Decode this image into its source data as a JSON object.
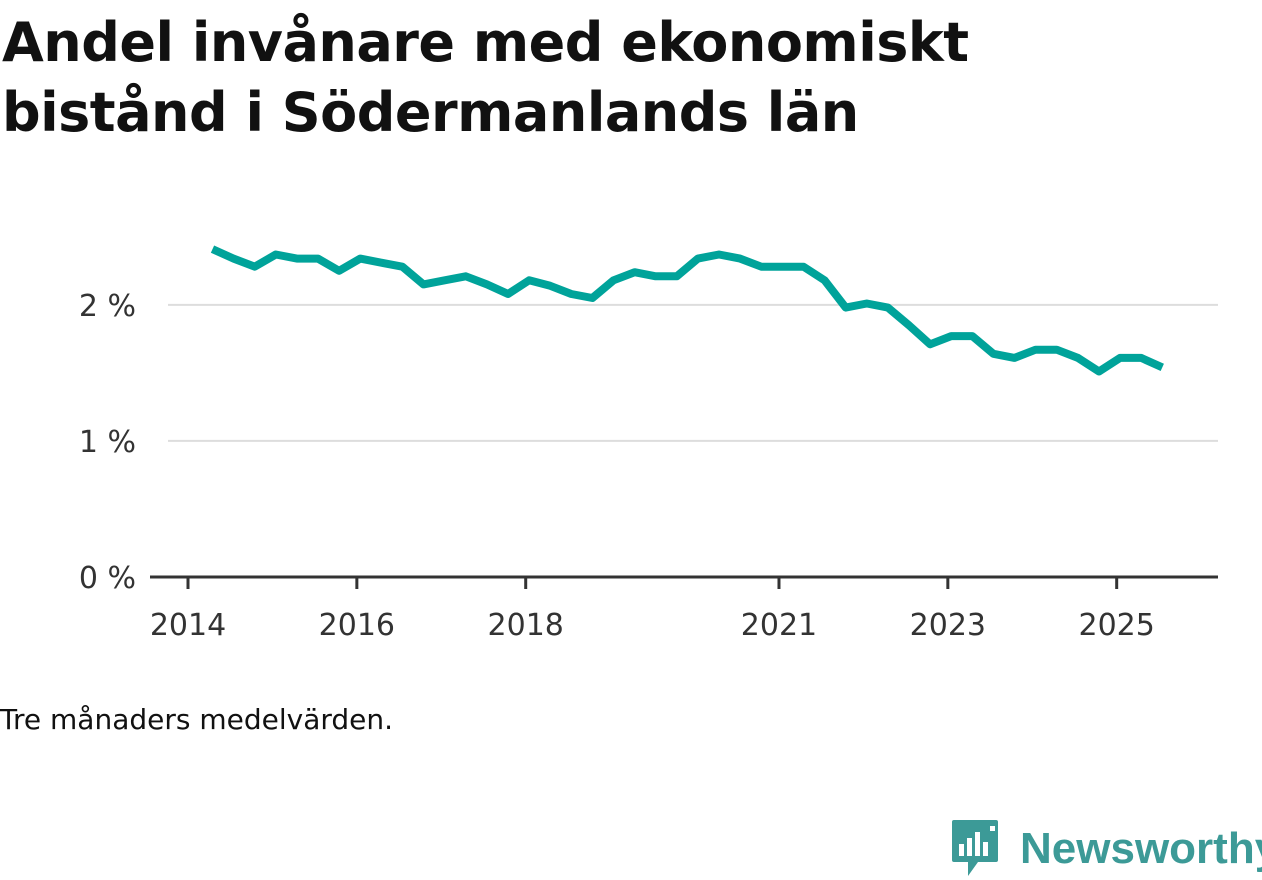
{
  "title": "Andel invånare med ekonomiskt bistånd i Södermanlands län",
  "caption": "Tre månaders medelvärden.",
  "logo": {
    "text": "Newsworthy",
    "color": "#3c9a97"
  },
  "colors": {
    "line": "#00a39a",
    "grid": "#dddddd",
    "axis": "#333333"
  },
  "chart_data": {
    "type": "line",
    "title": "Andel invånare med ekonomiskt bistånd i Södermanlands län",
    "xlabel": "",
    "ylabel": "",
    "ylim": [
      0,
      2.55
    ],
    "xlim": [
      2014.0,
      2026.2
    ],
    "y_ticks": [
      {
        "value": 0,
        "label": "0 %"
      },
      {
        "value": 1,
        "label": "1 %"
      },
      {
        "value": 2,
        "label": "2 %"
      }
    ],
    "x_ticks": [
      {
        "value": 2014,
        "label": "2014"
      },
      {
        "value": 2016,
        "label": "2016"
      },
      {
        "value": 2018,
        "label": "2018"
      },
      {
        "value": 2021,
        "label": "2021"
      },
      {
        "value": 2023,
        "label": "2023"
      },
      {
        "value": 2025,
        "label": "2025"
      }
    ],
    "series": [
      {
        "name": "Andel invånare med ekonomiskt bistånd",
        "x": [
          2014.29,
          2014.54,
          2014.79,
          2015.04,
          2015.29,
          2015.54,
          2015.79,
          2016.04,
          2016.29,
          2016.54,
          2016.79,
          2017.04,
          2017.29,
          2017.54,
          2017.79,
          2018.04,
          2018.29,
          2018.54,
          2018.79,
          2019.04,
          2019.29,
          2019.54,
          2019.79,
          2020.04,
          2020.29,
          2020.54,
          2020.79,
          2021.04,
          2021.29,
          2021.54,
          2021.79,
          2022.04,
          2022.29,
          2022.54,
          2022.79,
          2023.04,
          2023.29,
          2023.54,
          2023.79,
          2024.04,
          2024.29,
          2024.54,
          2024.79,
          2025.04,
          2025.29,
          2025.54
        ],
        "values": [
          2.41,
          2.34,
          2.28,
          2.37,
          2.34,
          2.34,
          2.25,
          2.34,
          2.31,
          2.28,
          2.15,
          2.18,
          2.21,
          2.15,
          2.08,
          2.18,
          2.14,
          2.08,
          2.05,
          2.18,
          2.24,
          2.21,
          2.21,
          2.34,
          2.37,
          2.34,
          2.28,
          2.28,
          2.28,
          2.18,
          1.98,
          2.01,
          1.98,
          1.85,
          1.71,
          1.77,
          1.77,
          1.64,
          1.61,
          1.67,
          1.67,
          1.61,
          1.51,
          1.61,
          1.61,
          1.54
        ]
      }
    ]
  }
}
